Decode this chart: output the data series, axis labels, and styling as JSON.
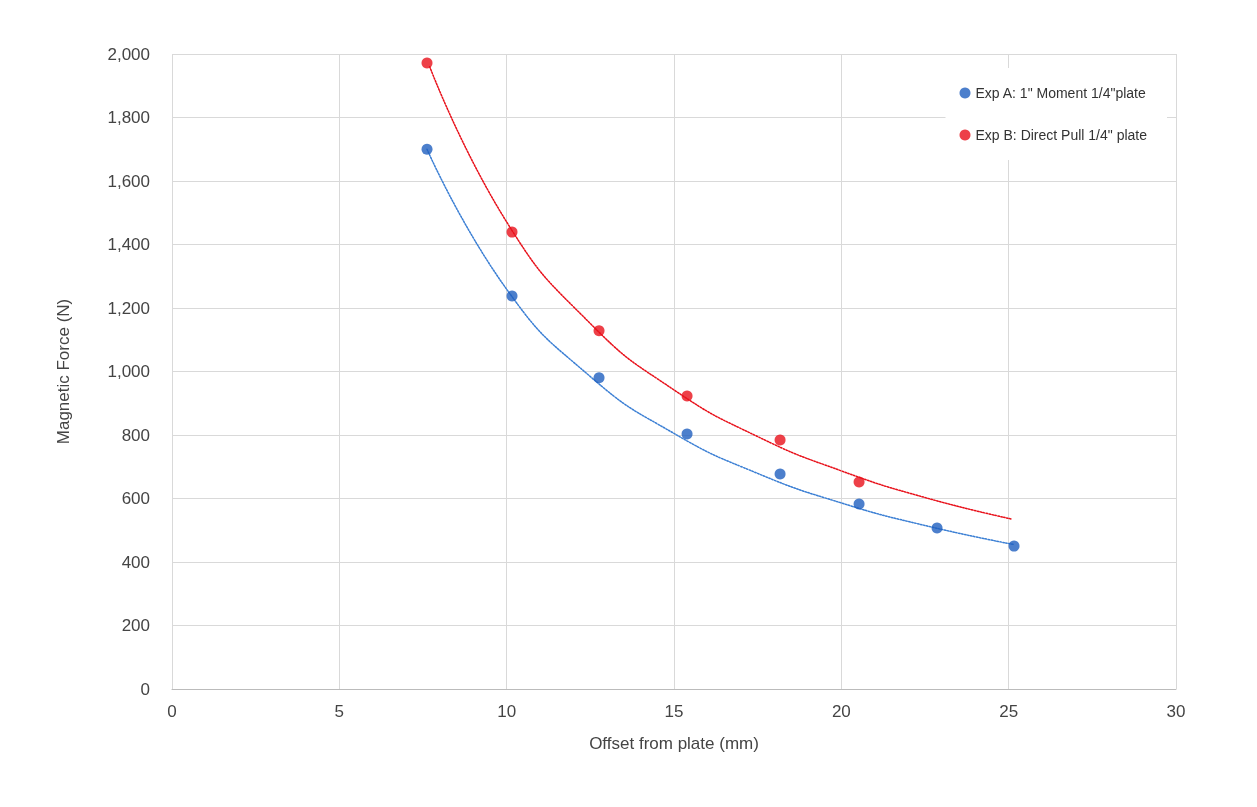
{
  "chart_data": {
    "type": "scatter",
    "xlabel": "Offset from plate (mm)",
    "ylabel": "Magnetic Force (N)",
    "xlim": [
      0,
      30
    ],
    "xticks": [
      0,
      5,
      10,
      15,
      20,
      25,
      30
    ],
    "ylim": [
      0,
      2000
    ],
    "yticks": [
      0,
      200,
      400,
      600,
      800,
      {
        "value": 1000,
        "label": "1,000"
      },
      {
        "value": 1200,
        "label": "1,200"
      },
      {
        "value": 1400,
        "label": "1,400"
      },
      {
        "value": 1600,
        "label": "1,600"
      },
      {
        "value": 1800,
        "label": "1,800"
      },
      {
        "value": 2000,
        "label": "2,000"
      }
    ],
    "grid": true,
    "legend": "top right",
    "marker": "circle",
    "series": [
      {
        "name": "Exp A: 1\" Moment 1/4\"plate",
        "color": "#1f5fbf",
        "x": [
          7.62,
          10.16,
          12.76,
          15.39,
          18.17,
          20.53,
          22.86,
          25.16
        ],
        "values": [
          1700,
          1238,
          980,
          803,
          677,
          583,
          507,
          450
        ]
      },
      {
        "name": "Exp B: Direct Pull 1/4\" plate",
        "color": "#e8101a",
        "x": [
          7.62,
          10.16,
          12.76,
          15.39,
          18.17,
          20.53
        ],
        "values": [
          1972,
          1439,
          1128,
          923,
          784,
          652
        ]
      },
      {
        "type": "line",
        "color": "#3b7fd4",
        "line_style": "dotted",
        "marker": "none",
        "x": [
          7.62,
          10,
          12.5,
          15,
          17.5,
          20,
          22.5,
          25.16
        ],
        "values": [
          1700,
          1259,
          984,
          805,
          679,
          586,
          515,
          455
        ]
      },
      {
        "type": "line",
        "color": "#e8101a",
        "line_style": "dotted",
        "marker": "none",
        "x": [
          7.7,
          10,
          12.5,
          15,
          17.5,
          20,
          22.5,
          25.1
        ],
        "values": [
          1960,
          1471,
          1151,
          942,
          795,
          687,
          603,
          535
        ]
      }
    ]
  }
}
